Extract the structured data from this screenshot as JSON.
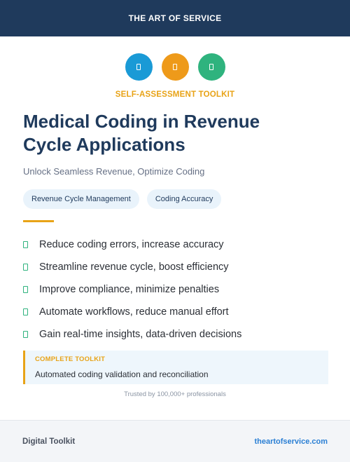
{
  "header": {
    "brand": "THE ART OF SERVICE"
  },
  "icons": [
    {
      "name": "document-icon",
      "color": "#1a9ad6"
    },
    {
      "name": "document-icon",
      "color": "#ee9a1a"
    },
    {
      "name": "document-icon",
      "color": "#2fb37e"
    }
  ],
  "kicker": "SELF-ASSESSMENT TOOLKIT",
  "title_line1": "Medical Coding in Revenue",
  "title_line2": "Cycle Applications",
  "subtitle": "Unlock Seamless Revenue, Optimize Coding",
  "chips": [
    "Revenue Cycle Management",
    "Coding Accuracy"
  ],
  "benefits": [
    "Reduce coding errors, increase accuracy",
    "Streamline revenue cycle, boost efficiency",
    "Improve compliance, minimize penalties",
    "Automate workflows, reduce manual effort",
    "Gain real-time insights, data-driven decisions"
  ],
  "callout": {
    "label": "COMPLETE TOOLKIT",
    "text": "Automated coding validation and reconciliation"
  },
  "trusted": "Trusted by 100,000+ professionals",
  "footer": {
    "left": "Digital Toolkit",
    "right": "theartofservice.com"
  }
}
